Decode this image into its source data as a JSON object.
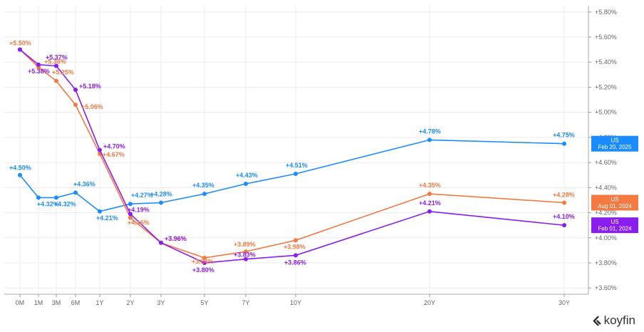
{
  "chart_data": {
    "type": "line",
    "categories": [
      "0M",
      "1M",
      "3M",
      "6M",
      "1Y",
      "2Y",
      "3Y",
      "5Y",
      "7Y",
      "10Y",
      "20Y",
      "30Y"
    ],
    "ylim": [
      3.55,
      5.85
    ],
    "yticks": [
      "+3.60%",
      "+3.80%",
      "+4.00%",
      "+4.20%",
      "+4.40%",
      "+4.60%",
      "+4.80%",
      "+5.00%",
      "+5.20%",
      "+5.40%",
      "+5.60%",
      "+5.80%"
    ],
    "ytick_values": [
      3.6,
      3.8,
      4.0,
      4.2,
      4.4,
      4.6,
      4.8,
      5.0,
      5.2,
      5.4,
      5.6,
      5.8
    ],
    "grid": true,
    "series": [
      {
        "name": "US Feb 20, 2025",
        "badge_line1": "US",
        "badge_line2": "Feb 20, 2025",
        "color": "#1a8cff",
        "values": [
          4.5,
          4.32,
          4.32,
          4.36,
          4.21,
          4.27,
          4.28,
          4.35,
          4.43,
          4.51,
          4.78,
          4.75
        ],
        "labels": [
          "+4.50%",
          "+4.32%",
          "+4.32%",
          "+4.36%",
          "+4.21%",
          "+4.27%",
          "+4.28%",
          "+4.35%",
          "+4.43%",
          "+4.51%",
          "+4.78%",
          "+4.75%"
        ]
      },
      {
        "name": "US Aug 01, 2024",
        "badge_line1": "US",
        "badge_line2": "Aug 01, 2024",
        "color": "#f47a42",
        "values": [
          5.5,
          5.36,
          5.25,
          5.06,
          4.67,
          4.16,
          3.96,
          3.84,
          3.89,
          3.98,
          4.35,
          4.28
        ],
        "labels": [
          "+5.50%",
          "+5.36%",
          "+5.25%",
          "+5.06%",
          "+4.67%",
          "+4.16%",
          "+3.96%",
          "+3.84%",
          "+3.89%",
          "+3.98%",
          "+4.35%",
          "+4.28%"
        ]
      },
      {
        "name": "US Feb 01, 2024",
        "badge_line1": "US",
        "badge_line2": "Feb 01, 2024",
        "color": "#8a1df0",
        "values": [
          5.5,
          5.38,
          5.37,
          5.18,
          4.7,
          4.19,
          3.96,
          3.8,
          3.83,
          3.86,
          4.21,
          4.1
        ],
        "labels": [
          "",
          "+5.38%",
          "+5.37%",
          "+5.18%",
          "+4.70%",
          "+4.19%",
          "+3.96%",
          "+3.80%",
          "+3.83%",
          "+3.86%",
          "+4.21%",
          "+4.10%"
        ]
      }
    ]
  },
  "branding": {
    "name": "koyfin"
  }
}
